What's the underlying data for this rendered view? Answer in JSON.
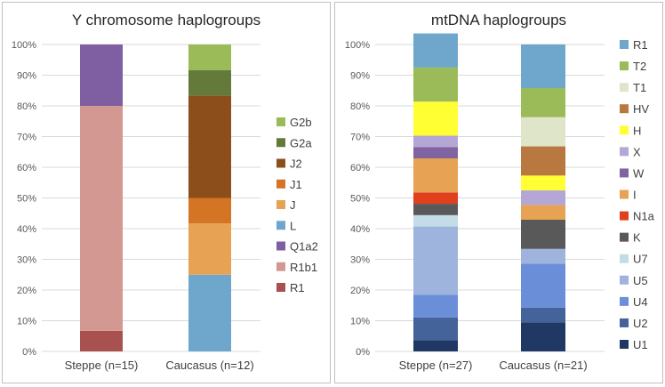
{
  "chart_data": [
    {
      "type": "bar",
      "stacked": "percent",
      "title": "Y chromosome haplogroups",
      "categories": [
        "Steppe (n=15)",
        "Caucasus (n=12)"
      ],
      "ylim": [
        0,
        100
      ],
      "y_ticks": [
        "0%",
        "10%",
        "20%",
        "30%",
        "40%",
        "50%",
        "60%",
        "70%",
        "80%",
        "90%",
        "100%"
      ],
      "grid": true,
      "legend_position": "right",
      "series": [
        {
          "name": "R1",
          "color": "#a9514e",
          "values": [
            6.7,
            0
          ]
        },
        {
          "name": "R1b1",
          "color": "#d49892",
          "values": [
            73.3,
            0
          ]
        },
        {
          "name": "Q1a2",
          "color": "#7f5ea2",
          "values": [
            20,
            0
          ]
        },
        {
          "name": "L",
          "color": "#6fa6cb",
          "values": [
            0,
            25
          ]
        },
        {
          "name": "J",
          "color": "#e7a253",
          "values": [
            0,
            16.7
          ]
        },
        {
          "name": "J1",
          "color": "#d47425",
          "values": [
            0,
            8.3
          ]
        },
        {
          "name": "J2",
          "color": "#8c4f1c",
          "values": [
            0,
            33.3
          ]
        },
        {
          "name": "G2a",
          "color": "#647a3b",
          "values": [
            0,
            8.3
          ]
        },
        {
          "name": "G2b",
          "color": "#9bbb59",
          "values": [
            0,
            8.4
          ]
        }
      ]
    },
    {
      "type": "bar",
      "stacked": "percent",
      "title": "mtDNA haplogroups",
      "categories": [
        "Steppe (n=27)",
        "Caucasus (n=21)"
      ],
      "ylim": [
        0,
        100
      ],
      "y_ticks": [
        "0%",
        "10%",
        "20%",
        "30%",
        "40%",
        "50%",
        "60%",
        "70%",
        "80%",
        "90%",
        "100%"
      ],
      "grid": true,
      "legend_position": "right",
      "series": [
        {
          "name": "U1",
          "color": "#1f3864",
          "values": [
            3.7,
            9.5
          ]
        },
        {
          "name": "U2",
          "color": "#44639b",
          "values": [
            7.4,
            4.8
          ]
        },
        {
          "name": "U4",
          "color": "#6a8fd8",
          "values": [
            7.4,
            14.3
          ]
        },
        {
          "name": "U5",
          "color": "#9fb4dc",
          "values": [
            22.2,
            4.8
          ]
        },
        {
          "name": "U7",
          "color": "#c3dce8",
          "values": [
            3.7,
            0
          ]
        },
        {
          "name": "K",
          "color": "#595959",
          "values": [
            3.7,
            9.5
          ]
        },
        {
          "name": "N1a",
          "color": "#e0401c",
          "values": [
            3.7,
            0
          ]
        },
        {
          "name": "I",
          "color": "#e7a253",
          "values": [
            11.1,
            4.8
          ]
        },
        {
          "name": "W",
          "color": "#8064a2",
          "values": [
            3.7,
            0
          ]
        },
        {
          "name": "X",
          "color": "#b4a7d6",
          "values": [
            3.7,
            4.8
          ]
        },
        {
          "name": "H",
          "color": "#ffff33",
          "values": [
            11.1,
            4.8
          ]
        },
        {
          "name": "HV",
          "color": "#b87840",
          "values": [
            0,
            9.5
          ]
        },
        {
          "name": "T1",
          "color": "#dfe5c8",
          "values": [
            0,
            9.5
          ]
        },
        {
          "name": "T2",
          "color": "#9bbb59",
          "values": [
            11.1,
            9.5
          ]
        },
        {
          "name": "R1",
          "color": "#6fa6cb",
          "values": [
            11.1,
            14.2
          ]
        }
      ]
    }
  ]
}
